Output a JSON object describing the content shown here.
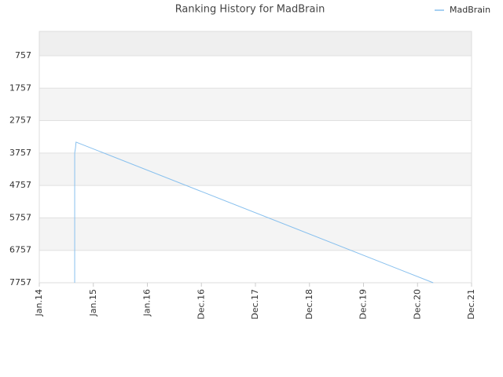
{
  "chart_data": {
    "type": "line",
    "title": "Ranking History for MadBrain",
    "x": [
      0.655,
      0.655,
      0.67,
      0.68,
      7.29
    ],
    "series": [
      {
        "name": "MadBrain",
        "color": "#88c0ee",
        "values": [
          7757,
          3757,
          3600,
          3420,
          7757
        ]
      }
    ],
    "xlim": [
      0,
      8
    ],
    "xticks": [
      {
        "value": 0,
        "label": "Jan.14"
      },
      {
        "value": 1,
        "label": "Jan.15"
      },
      {
        "value": 2,
        "label": "Jan.16"
      },
      {
        "value": 3,
        "label": "Dec.16"
      },
      {
        "value": 4,
        "label": "Dec.17"
      },
      {
        "value": 5,
        "label": "Dec.18"
      },
      {
        "value": 6,
        "label": "Dec.19"
      },
      {
        "value": 7,
        "label": "Dec.20"
      },
      {
        "value": 8,
        "label": "Dec.21"
      }
    ],
    "ylim": [
      7757,
      7
    ],
    "yticks": [
      757,
      1757,
      2757,
      3757,
      4757,
      5757,
      6757,
      7757
    ],
    "grid": true,
    "legend": "top-right"
  }
}
